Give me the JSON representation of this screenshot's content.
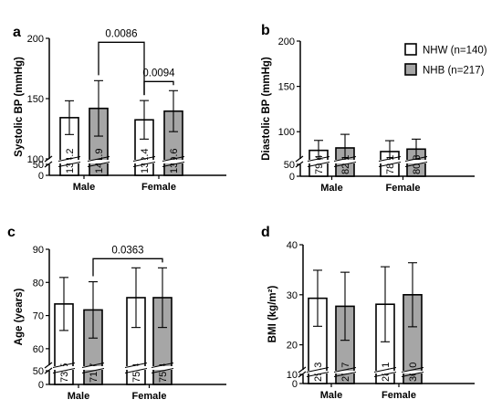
{
  "colors": {
    "nhw": "#ffffff",
    "nhb": "#a6a6a6",
    "stroke": "#000000"
  },
  "legend": {
    "items": [
      {
        "key": "nhw",
        "label": "NHW (n=140)"
      },
      {
        "key": "nhb",
        "label": "NHB (n=217)"
      }
    ]
  },
  "chart_data": [
    {
      "panel": "a",
      "type": "bar",
      "ylabel": "Systolic BP (mmHg)",
      "categories": [
        "Male",
        "Female"
      ],
      "ylim": [
        0,
        200
      ],
      "axis_break": [
        50,
        100
      ],
      "yticks_low": [
        "0",
        "50"
      ],
      "yticks_high": [
        "100",
        "150",
        "200"
      ],
      "series": [
        {
          "key": "nhw",
          "values": [
            134.2,
            132.4
          ],
          "errors": [
            14,
            16
          ],
          "labels": [
            "134.2",
            "132.4"
          ]
        },
        {
          "key": "nhb",
          "values": [
            141.9,
            139.6
          ],
          "errors": [
            23,
            17
          ],
          "labels": [
            "141.9",
            "139.6"
          ]
        }
      ],
      "brackets": [
        {
          "from": [
            0,
            1
          ],
          "to": [
            1,
            0
          ],
          "text": "0.0086",
          "level": 1
        },
        {
          "from": [
            1,
            0
          ],
          "to": [
            1,
            1
          ],
          "text": "0.0094",
          "level": 0
        }
      ]
    },
    {
      "panel": "b",
      "type": "bar",
      "ylabel": "Diastolic BP (mmHg)",
      "categories": [
        "Male",
        "Female"
      ],
      "ylim": [
        0,
        200
      ],
      "axis_break": [
        50,
        70
      ],
      "yticks_low": [
        "0",
        "50"
      ],
      "yticks_high": [
        "100",
        "150",
        "200"
      ],
      "series": [
        {
          "key": "nhw",
          "values": [
            79.4,
            78.1
          ],
          "errors": [
            11,
            12
          ],
          "labels": [
            "79.4",
            "78.1"
          ]
        },
        {
          "key": "nhb",
          "values": [
            82.1,
            80.8
          ],
          "errors": [
            15,
            11
          ],
          "labels": [
            "82.1",
            "80.8"
          ]
        }
      ],
      "brackets": []
    },
    {
      "panel": "c",
      "type": "bar",
      "ylabel": "Age (years)",
      "categories": [
        "Male",
        "Female"
      ],
      "ylim": [
        0,
        90
      ],
      "axis_break": [
        50,
        55
      ],
      "yticks_low": [
        "0",
        "50"
      ],
      "yticks_high": [
        "60",
        "70",
        "80",
        "90"
      ],
      "series": [
        {
          "key": "nhw",
          "values": [
            73.5,
            75.4
          ],
          "errors": [
            8,
            9
          ],
          "labels": [
            "73.5",
            "75.4"
          ]
        },
        {
          "key": "nhb",
          "values": [
            71.7,
            75.4
          ],
          "errors": [
            8.5,
            9
          ],
          "labels": [
            "71.7",
            "75.4"
          ]
        }
      ],
      "brackets": [
        {
          "from": [
            0,
            1
          ],
          "to": [
            1,
            1
          ],
          "text": "0.0363",
          "level": 0
        }
      ]
    },
    {
      "panel": "d",
      "type": "bar",
      "ylabel": "BMI (kg/m²)",
      "categories": [
        "Male",
        "Female"
      ],
      "ylim": [
        0,
        40
      ],
      "axis_break": [
        10,
        15
      ],
      "yticks_low": [
        "0",
        "10"
      ],
      "yticks_high": [
        "20",
        "30",
        "40"
      ],
      "series": [
        {
          "key": "nhw",
          "values": [
            29.3,
            28.1
          ],
          "errors": [
            5.6,
            7.5
          ],
          "labels": [
            "29.3",
            "28.1"
          ]
        },
        {
          "key": "nhb",
          "values": [
            27.7,
            30.0
          ],
          "errors": [
            6.8,
            6.4
          ],
          "labels": [
            "27.7",
            "30.0"
          ]
        }
      ],
      "brackets": []
    }
  ]
}
